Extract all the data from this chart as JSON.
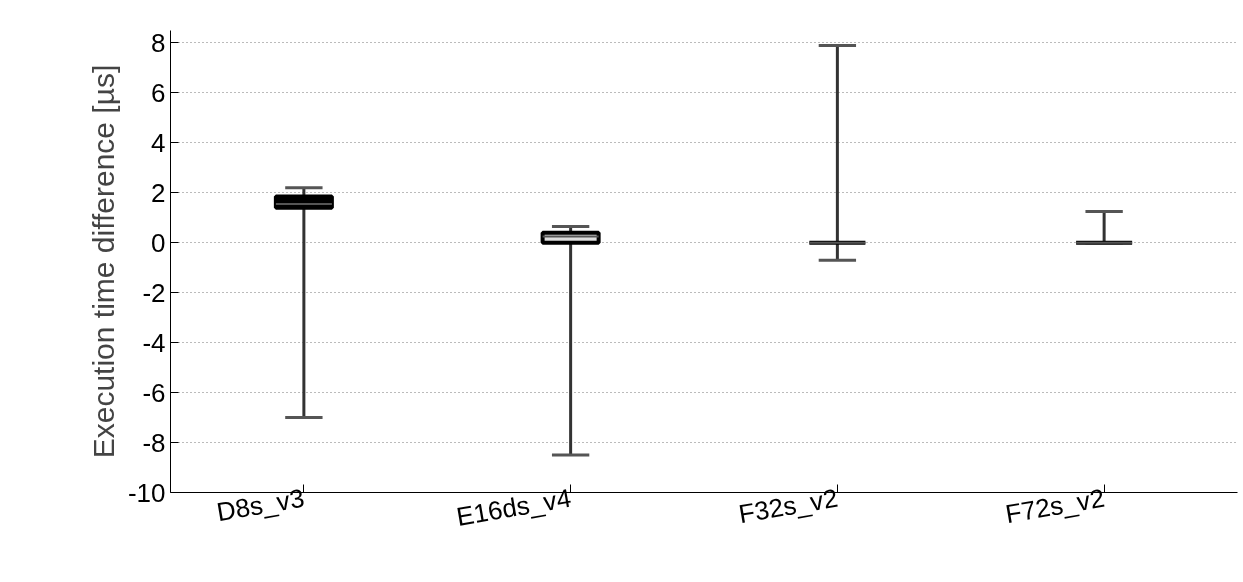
{
  "chart_data": {
    "type": "box",
    "ylabel": "Execution time difference [µs]",
    "categories": [
      "D8s_v3",
      "E16ds_v4",
      "F32s_v2",
      "F72s_v2"
    ],
    "series": [
      {
        "color": "#000000",
        "boxes": [
          {
            "low": -7.0,
            "q1": 1.4,
            "median": 1.55,
            "q3": 1.85,
            "high": 2.2
          },
          {
            "low": -8.5,
            "q1": 0.0,
            "median": 0.25,
            "q3": 0.4,
            "high": 0.65
          },
          {
            "low": -0.7,
            "q1": 0.0,
            "median": 0.0,
            "q3": 0.0,
            "high": 7.9
          },
          {
            "low": 0.0,
            "q1": 0.0,
            "median": 0.0,
            "q3": 0.0,
            "high": 1.25
          }
        ],
        "colors": [
          "#000000",
          "#dddddd",
          "#000000",
          "#000000"
        ]
      }
    ],
    "ylim": [
      -10,
      8.5
    ],
    "yticks": [
      -10,
      -8,
      -6,
      -4,
      -2,
      0,
      2,
      4,
      6,
      8
    ],
    "grid": "y"
  }
}
